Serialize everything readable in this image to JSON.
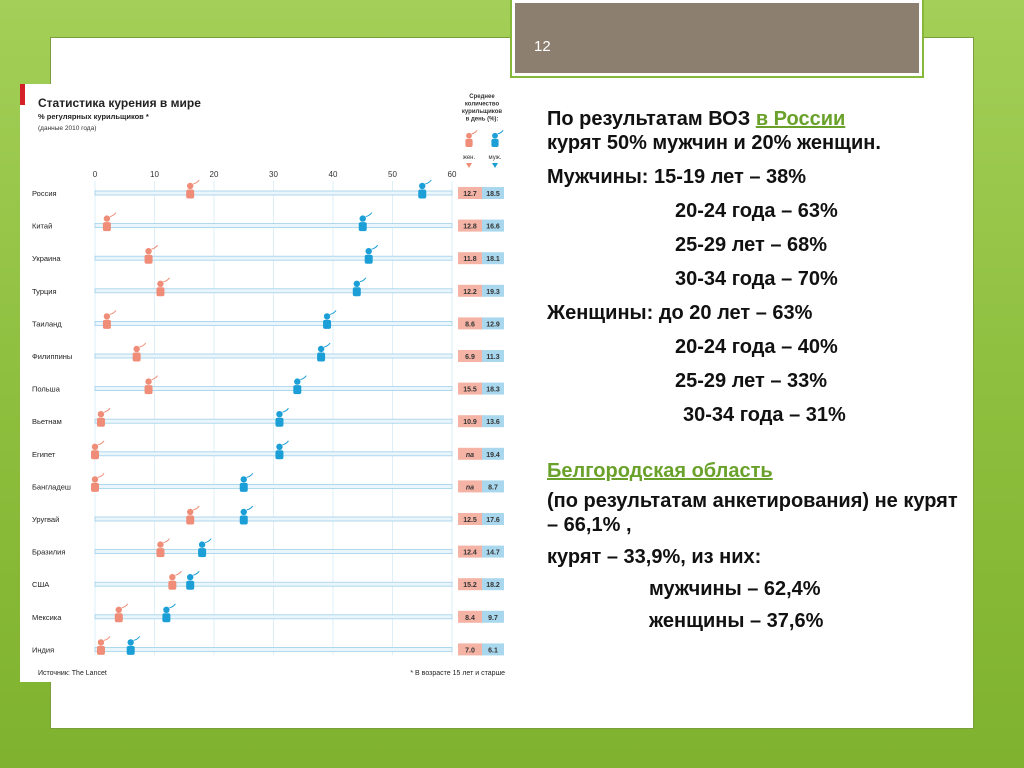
{
  "slide": {
    "number": "12"
  },
  "chart_data": {
    "type": "dot",
    "title": "Статистика курения в мире",
    "subtitle": "% регулярных курильщиков *",
    "note": "(данные 2010 года)",
    "xticks": [
      0,
      10,
      20,
      30,
      40,
      50,
      60
    ],
    "xlim": [
      0,
      60
    ],
    "side_header": "Среднее количество курильщиков в день (%):",
    "legend": {
      "female": "жен.",
      "male": "муж."
    },
    "colors": {
      "female": "#ef8d78",
      "male": "#1b9fd6",
      "axis": "#9fd0ea",
      "female_box": "#f4b3a4",
      "male_box": "#a9d8ee"
    },
    "categories": [
      "Россия",
      "Китай",
      "Украина",
      "Турция",
      "Таиланд",
      "Филиппины",
      "Польша",
      "Вьетнам",
      "Египет",
      "Бангладеш",
      "Уругвай",
      "Бразилия",
      "США",
      "Мексика",
      "Индия"
    ],
    "series": [
      {
        "name": "жен.",
        "values": [
          16,
          2,
          9,
          11,
          2,
          7,
          9,
          1,
          0,
          0,
          16,
          11,
          13,
          4,
          1
        ]
      },
      {
        "name": "муж.",
        "values": [
          55,
          45,
          46,
          44,
          39,
          38,
          34,
          31,
          31,
          25,
          25,
          18,
          16,
          12,
          6
        ]
      }
    ],
    "avg_female": [
      "12.7",
      "12.8",
      "11.8",
      "12.2",
      "8.6",
      "6.9",
      "15.5",
      "10.9",
      "na",
      "na",
      "12.5",
      "12.4",
      "15.2",
      "8.4",
      "7.0"
    ],
    "avg_male": [
      "18.5",
      "16.6",
      "18.1",
      "19.3",
      "12.9",
      "11.3",
      "18.3",
      "13.6",
      "19.4",
      "8.7",
      "17.6",
      "14.7",
      "18.2",
      "9.7",
      "6.1"
    ],
    "source": "Источник: The Lancet",
    "footnote": "* В возрасте 15 лет и старше"
  },
  "text": {
    "l1a": "По результатам ВОЗ ",
    "l1link": "в России",
    "l2": "курят 50% мужчин и 20% женщин.",
    "m1": "Мужчины: 15-19 лет – 38%",
    "m2": "20-24 года – 63%",
    "m3": "25-29 лет – 68%",
    "m4": "30-34 года – 70%",
    "w1": "Женщины: до 20 лет – 63%",
    "w2": "20-24 года – 40%",
    "w3": "25-29 лет – 33%",
    "w4": "30-34 года – 31%",
    "region": "Белгородская область",
    "r1": "(по результатам анкетирования) не курят – 66,1% ,",
    "r2": "курят – 33,9%, из них:",
    "r3": "мужчины – 62,4%",
    "r4": "женщины – 37,6%"
  }
}
